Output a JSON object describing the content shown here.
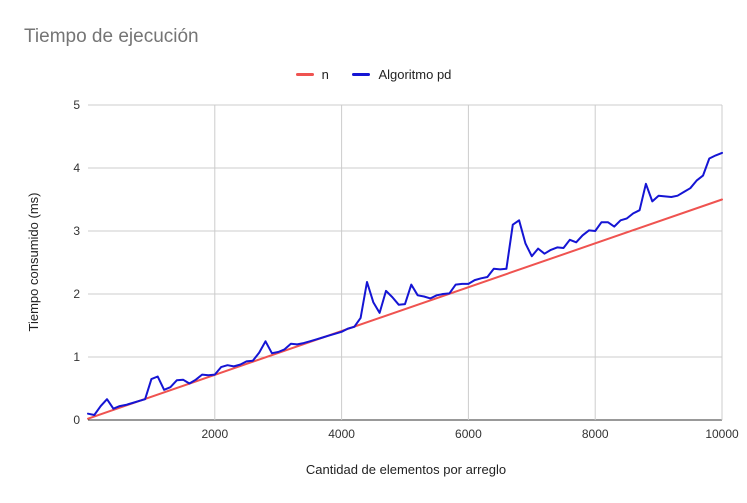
{
  "chart_data": {
    "type": "line",
    "title": "Tiempo de ejecución",
    "xlabel": "Cantidad de elementos por arreglo",
    "ylabel": "Tiempo consumido (ms)",
    "xlim": [
      0,
      10000
    ],
    "ylim": [
      0,
      5
    ],
    "x_ticks": [
      "2000",
      "4000",
      "6000",
      "8000",
      "10000"
    ],
    "y_ticks": [
      "0",
      "1",
      "2",
      "3",
      "4",
      "5"
    ],
    "grid": true,
    "legend_position": "top",
    "series": [
      {
        "name": "n",
        "color": "#ef5350",
        "x": [
          0,
          10000
        ],
        "y": [
          0.02,
          3.5
        ]
      },
      {
        "name": "Algoritmo pd",
        "color": "#1515d4",
        "x": [
          0,
          100,
          200,
          300,
          400,
          500,
          600,
          700,
          800,
          900,
          1000,
          1100,
          1200,
          1300,
          1400,
          1500,
          1600,
          1700,
          1800,
          1900,
          2000,
          2100,
          2200,
          2300,
          2400,
          2500,
          2600,
          2700,
          2800,
          2900,
          3000,
          3100,
          3200,
          3300,
          3400,
          3500,
          3600,
          3700,
          3800,
          3900,
          4000,
          4100,
          4200,
          4300,
          4400,
          4500,
          4600,
          4700,
          4800,
          4900,
          5000,
          5100,
          5200,
          5300,
          5400,
          5500,
          5600,
          5700,
          5800,
          5900,
          6000,
          6100,
          6200,
          6300,
          6400,
          6500,
          6600,
          6700,
          6800,
          6900,
          7000,
          7100,
          7200,
          7300,
          7400,
          7500,
          7600,
          7700,
          7800,
          7900,
          8000,
          8100,
          8200,
          8300,
          8400,
          8500,
          8600,
          8700,
          8800,
          8900,
          9000,
          9100,
          9200,
          9300,
          9400,
          9500,
          9600,
          9700,
          9800,
          9900,
          10000
        ],
        "y": [
          0.1,
          0.08,
          0.22,
          0.33,
          0.18,
          0.22,
          0.24,
          0.27,
          0.3,
          0.33,
          0.65,
          0.69,
          0.48,
          0.52,
          0.63,
          0.64,
          0.58,
          0.64,
          0.72,
          0.71,
          0.72,
          0.84,
          0.87,
          0.85,
          0.88,
          0.93,
          0.94,
          1.07,
          1.25,
          1.06,
          1.08,
          1.12,
          1.21,
          1.2,
          1.22,
          1.25,
          1.28,
          1.31,
          1.34,
          1.37,
          1.4,
          1.45,
          1.48,
          1.62,
          2.19,
          1.87,
          1.7,
          2.05,
          1.95,
          1.83,
          1.84,
          2.15,
          1.98,
          1.96,
          1.93,
          1.98,
          2.0,
          2.01,
          2.15,
          2.16,
          2.16,
          2.22,
          2.25,
          2.27,
          2.4,
          2.39,
          2.4,
          3.1,
          3.17,
          2.8,
          2.6,
          2.72,
          2.64,
          2.7,
          2.74,
          2.73,
          2.86,
          2.82,
          2.93,
          3.01,
          3.0,
          3.14,
          3.14,
          3.07,
          3.17,
          3.2,
          3.28,
          3.33,
          3.75,
          3.47,
          3.56,
          3.55,
          3.54,
          3.56,
          3.62,
          3.68,
          3.8,
          3.88,
          4.15,
          4.2,
          4.24
        ]
      }
    ]
  }
}
